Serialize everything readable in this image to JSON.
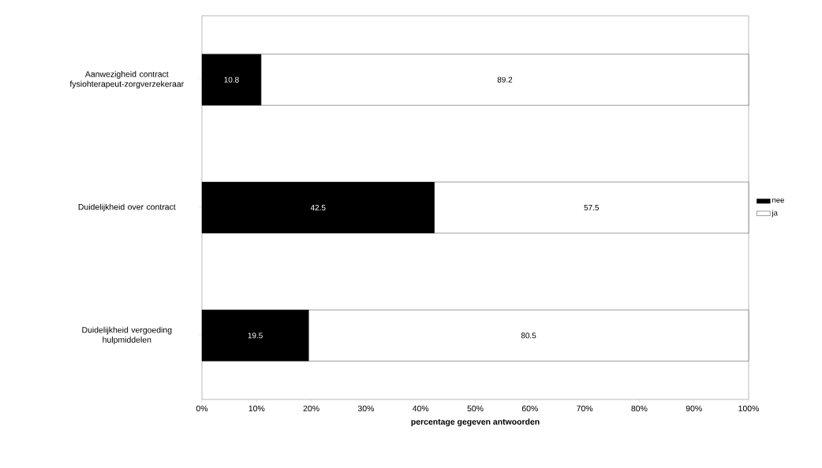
{
  "chart_data": {
    "type": "bar",
    "orientation": "horizontal",
    "stacked": true,
    "categories": [
      "Aanwezigheid contract fysiohterapeut-zorgverzekeraar",
      "Duidelijkheid over contract",
      "Duidelijkheid vergoeding hulpmiddelen"
    ],
    "series": [
      {
        "name": "nee",
        "color": "#000000",
        "values": [
          10.8,
          42.5,
          19.5
        ]
      },
      {
        "name": "ja",
        "color": "#ffffff",
        "values": [
          89.2,
          57.5,
          80.5
        ]
      }
    ],
    "xlabel": "percentage gegeven antwoorden",
    "xlim": [
      0,
      100
    ],
    "xticks": [
      {
        "value": 0,
        "label": "0%"
      },
      {
        "value": 10,
        "label": "10%"
      },
      {
        "value": 20,
        "label": "20%"
      },
      {
        "value": 30,
        "label": "30%"
      },
      {
        "value": 40,
        "label": "40%"
      },
      {
        "value": 50,
        "label": "50%"
      },
      {
        "value": 60,
        "label": "60%"
      },
      {
        "value": 70,
        "label": "70%"
      },
      {
        "value": 80,
        "label": "80%"
      },
      {
        "value": 90,
        "label": "90%"
      },
      {
        "value": 100,
        "label": "100%"
      }
    ],
    "data_labels": true,
    "legend": "right"
  }
}
